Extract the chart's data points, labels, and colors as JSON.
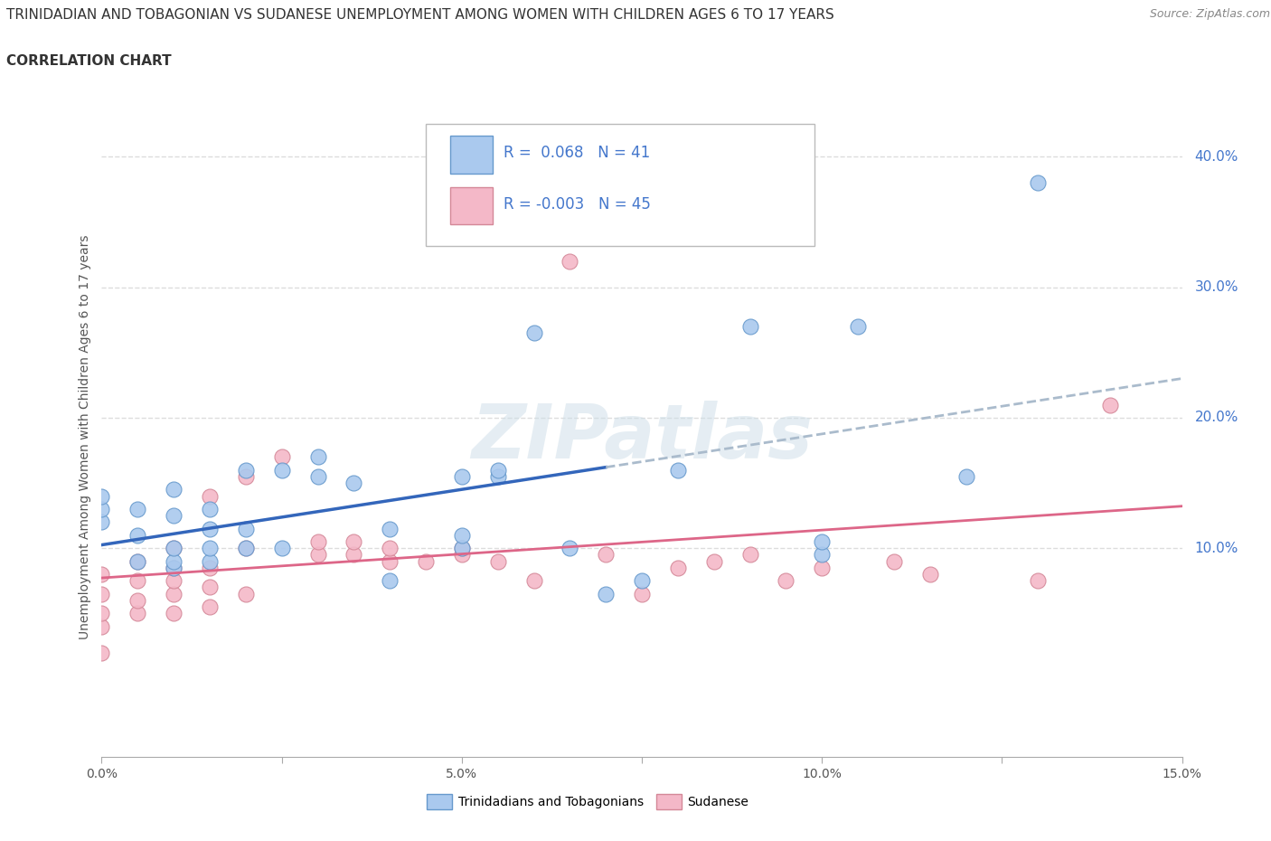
{
  "title_line1": "TRINIDADIAN AND TOBAGONIAN VS SUDANESE UNEMPLOYMENT AMONG WOMEN WITH CHILDREN AGES 6 TO 17 YEARS",
  "title_line2": "CORRELATION CHART",
  "source_text": "Source: ZipAtlas.com",
  "ylabel": "Unemployment Among Women with Children Ages 6 to 17 years",
  "xlim": [
    0.0,
    0.15
  ],
  "ylim": [
    -0.06,
    0.43
  ],
  "xtick_labels": [
    "0.0%",
    "",
    "5.0%",
    "",
    "10.0%",
    "",
    "15.0%"
  ],
  "xtick_values": [
    0.0,
    0.025,
    0.05,
    0.075,
    0.1,
    0.125,
    0.15
  ],
  "ytick_right_labels": [
    "40.0%",
    "30.0%",
    "20.0%",
    "10.0%"
  ],
  "ytick_right_values": [
    0.4,
    0.3,
    0.2,
    0.1
  ],
  "watermark": "ZIPatlas",
  "series": [
    {
      "label": "Trinidadians and Tobagonians",
      "color": "#aac9ee",
      "edge_color": "#6699cc",
      "R": 0.068,
      "N": 41,
      "line_color_solid": "#3366bb",
      "line_color_dash": "#aabbcc",
      "line_style_solid": "-",
      "line_style_dash": "--",
      "points_x": [
        0.0,
        0.0,
        0.0,
        0.005,
        0.005,
        0.005,
        0.01,
        0.01,
        0.01,
        0.01,
        0.01,
        0.015,
        0.015,
        0.015,
        0.015,
        0.02,
        0.02,
        0.02,
        0.025,
        0.025,
        0.03,
        0.03,
        0.035,
        0.04,
        0.04,
        0.05,
        0.05,
        0.05,
        0.055,
        0.055,
        0.06,
        0.065,
        0.07,
        0.075,
        0.08,
        0.09,
        0.1,
        0.1,
        0.105,
        0.12,
        0.13
      ],
      "points_y": [
        0.12,
        0.13,
        0.14,
        0.09,
        0.11,
        0.13,
        0.085,
        0.09,
        0.1,
        0.125,
        0.145,
        0.09,
        0.1,
        0.115,
        0.13,
        0.1,
        0.115,
        0.16,
        0.1,
        0.16,
        0.155,
        0.17,
        0.15,
        0.075,
        0.115,
        0.1,
        0.11,
        0.155,
        0.155,
        0.16,
        0.265,
        0.1,
        0.065,
        0.075,
        0.16,
        0.27,
        0.095,
        0.105,
        0.27,
        0.155,
        0.38
      ]
    },
    {
      "label": "Sudanese",
      "color": "#f4b8c8",
      "edge_color": "#d48898",
      "R": -0.003,
      "N": 45,
      "line_color": "#dd6688",
      "points_x": [
        0.0,
        0.0,
        0.0,
        0.0,
        0.0,
        0.005,
        0.005,
        0.005,
        0.005,
        0.01,
        0.01,
        0.01,
        0.01,
        0.01,
        0.015,
        0.015,
        0.015,
        0.015,
        0.02,
        0.02,
        0.02,
        0.025,
        0.03,
        0.03,
        0.035,
        0.035,
        0.04,
        0.04,
        0.045,
        0.05,
        0.05,
        0.055,
        0.06,
        0.065,
        0.07,
        0.075,
        0.08,
        0.085,
        0.09,
        0.095,
        0.1,
        0.11,
        0.115,
        0.13,
        0.14
      ],
      "points_y": [
        0.02,
        0.04,
        0.05,
        0.065,
        0.08,
        0.05,
        0.06,
        0.075,
        0.09,
        0.05,
        0.065,
        0.075,
        0.085,
        0.1,
        0.055,
        0.07,
        0.085,
        0.14,
        0.065,
        0.1,
        0.155,
        0.17,
        0.095,
        0.105,
        0.095,
        0.105,
        0.09,
        0.1,
        0.09,
        0.095,
        0.1,
        0.09,
        0.075,
        0.32,
        0.095,
        0.065,
        0.085,
        0.09,
        0.095,
        0.075,
        0.085,
        0.09,
        0.08,
        0.075,
        0.21
      ]
    }
  ],
  "trin_line_x_split": 0.07,
  "legend_R_color": "#4477cc",
  "legend_fontsize": 12,
  "title_fontsize": 11,
  "axis_label_fontsize": 10,
  "tick_fontsize": 10,
  "background_color": "#ffffff",
  "plot_bg_color": "#ffffff",
  "grid_color": "#dddddd"
}
